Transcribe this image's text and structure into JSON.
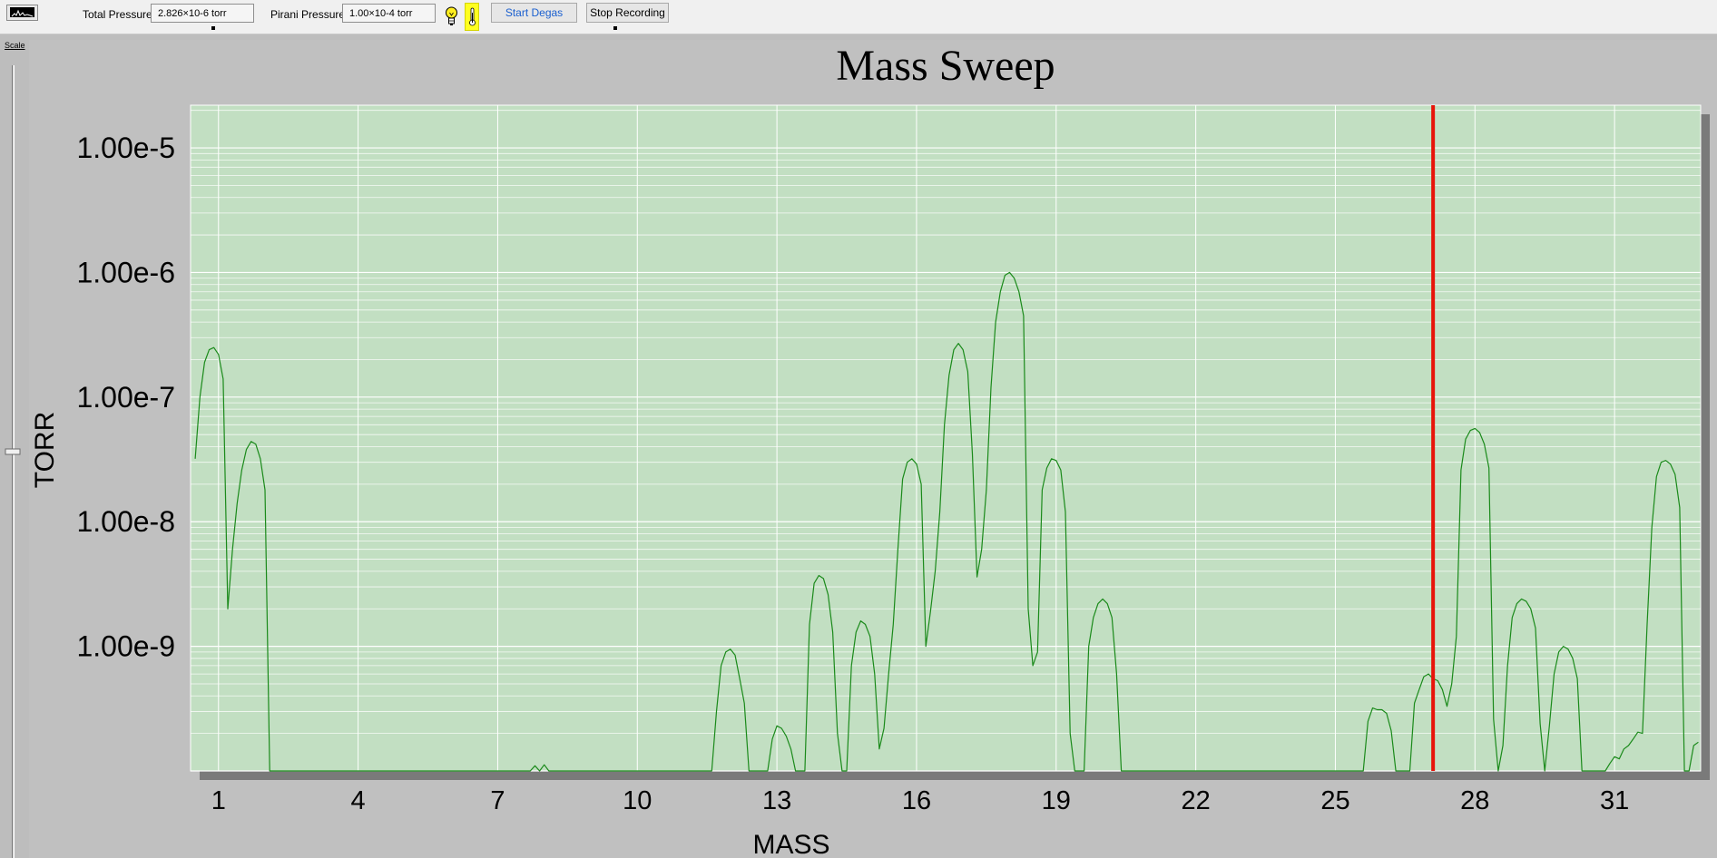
{
  "toolbar": {
    "total_pressure_label": "Total Pressure",
    "total_pressure_value": "2.826×10-6 torr",
    "pirani_pressure_label": "Pirani Pressure",
    "pirani_pressure_value": "1.00×10-4 torr",
    "start_degas_label": "Start Degas",
    "stop_recording_label": "Stop Recording",
    "scale_label": "Scale",
    "icons": [
      "spectrum-thumbnail-icon",
      "filament-bulb-icon",
      "thermometer-icon"
    ]
  },
  "colors": {
    "plot_background": "#c2dfc2",
    "trace": "#1a8a1a",
    "cursor": "#e8140a",
    "link_text": "#1a5fcf",
    "highlight": "#ffff20"
  },
  "chart_data": {
    "type": "line",
    "title": "Mass Sweep",
    "xlabel": "MASS",
    "ylabel": "TORR",
    "xlim": [
      0.4,
      32.85
    ],
    "ylim": [
      1e-10,
      2.2e-05
    ],
    "yscale": "log",
    "grid": true,
    "legend": "none",
    "x_ticks": [
      1,
      4,
      7,
      10,
      13,
      16,
      19,
      22,
      25,
      28,
      31
    ],
    "y_tick_labels": [
      "1.00e-5",
      "1.00e-6",
      "1.00e-7",
      "1.00e-8",
      "1.00e-9"
    ],
    "cursor_x": 27.1,
    "series": [
      {
        "x": [
          0.5,
          0.6,
          0.7,
          0.8,
          0.9,
          1.0,
          1.1,
          1.2,
          1.3,
          1.4,
          1.5,
          1.6,
          1.7,
          1.8,
          1.9,
          2.0,
          2.1,
          2.2,
          2.3,
          2.35,
          2.4,
          7.7,
          7.8,
          7.9,
          8.0,
          8.1,
          11.6,
          11.7,
          11.8,
          11.9,
          12.0,
          12.1,
          12.2,
          12.3,
          12.4,
          12.8,
          12.9,
          13.0,
          13.1,
          13.2,
          13.3,
          13.4,
          13.6,
          13.7,
          13.8,
          13.9,
          14.0,
          14.1,
          14.2,
          14.3,
          14.4,
          14.5,
          14.6,
          14.7,
          14.8,
          14.9,
          15.0,
          15.1,
          15.2,
          15.3,
          15.4,
          15.5,
          15.6,
          15.7,
          15.8,
          15.9,
          16.0,
          16.1,
          16.2,
          16.3,
          16.4,
          16.5,
          16.6,
          16.7,
          16.8,
          16.9,
          17.0,
          17.1,
          17.2,
          17.3,
          17.4,
          17.5,
          17.6,
          17.7,
          17.8,
          17.9,
          18.0,
          18.1,
          18.2,
          18.3,
          18.4,
          18.5,
          18.6,
          18.7,
          18.8,
          18.9,
          19.0,
          19.1,
          19.2,
          19.3,
          19.4,
          19.5,
          19.6,
          19.6,
          19.7,
          19.8,
          19.9,
          20.0,
          20.1,
          20.2,
          20.3,
          20.4,
          25.6,
          25.7,
          25.8,
          25.9,
          26.0,
          26.1,
          26.2,
          26.3,
          26.4,
          26.5,
          26.6,
          26.7,
          26.8,
          26.9,
          27.0,
          27.1,
          27.2,
          27.3,
          27.4,
          27.5,
          27.6,
          27.7,
          27.8,
          27.9,
          28.0,
          28.1,
          28.2,
          28.3,
          28.4,
          28.5,
          28.5,
          28.6,
          28.7,
          28.8,
          28.9,
          29.0,
          29.1,
          29.2,
          29.3,
          29.4,
          29.5,
          29.5,
          29.6,
          29.7,
          29.8,
          29.9,
          30.0,
          30.1,
          30.2,
          30.3,
          30.4,
          30.8,
          30.9,
          31.0,
          31.1,
          31.2,
          31.3,
          31.4,
          31.5,
          31.6,
          31.7,
          31.8,
          31.9,
          32.0,
          32.1,
          32.2,
          32.3,
          32.4,
          32.5,
          32.6,
          32.7,
          32.8
        ],
        "y": [
          3.2e-08,
          1e-07,
          1.9e-07,
          2.4e-07,
          2.5e-07,
          2.2e-07,
          1.4e-07,
          2e-09,
          6e-09,
          1.4e-08,
          2.6e-08,
          3.8e-08,
          4.4e-08,
          4.2e-08,
          3.2e-08,
          1.8e-08,
          1e-10,
          1e-10,
          1e-10,
          1e-10,
          1e-10,
          1e-10,
          1.1e-10,
          1e-10,
          1.12e-10,
          1e-10,
          1e-10,
          3e-10,
          7e-10,
          9e-10,
          9.5e-10,
          8.5e-10,
          5.5e-10,
          3.5e-10,
          1e-10,
          1e-10,
          1.8e-10,
          2.3e-10,
          2.2e-10,
          1.9e-10,
          1.5e-10,
          1e-10,
          1e-10,
          1.5e-09,
          3.2e-09,
          3.7e-09,
          3.5e-09,
          2.6e-09,
          1.3e-09,
          2e-10,
          1e-10,
          1e-10,
          7e-10,
          1.3e-09,
          1.6e-09,
          1.5e-09,
          1.2e-09,
          6e-10,
          1.5e-10,
          2.2e-10,
          6e-10,
          1.5e-09,
          6e-09,
          2.2e-08,
          3e-08,
          3.2e-08,
          2.9e-08,
          2e-08,
          1e-09,
          1.9e-09,
          4e-09,
          1.2e-08,
          6e-08,
          1.5e-07,
          2.4e-07,
          2.7e-07,
          2.4e-07,
          1.6e-07,
          3.5e-08,
          3.6e-09,
          6e-09,
          1.8e-08,
          1.2e-07,
          4e-07,
          7e-07,
          9.5e-07,
          1e-06,
          9e-07,
          7e-07,
          4.5e-07,
          2e-09,
          7e-10,
          9e-10,
          1.8e-08,
          2.7e-08,
          3.2e-08,
          3.1e-08,
          2.6e-08,
          1.2e-08,
          2e-10,
          1e-10,
          1e-10,
          1e-10,
          1e-10,
          1e-09,
          1.7e-09,
          2.2e-09,
          2.4e-09,
          2.2e-09,
          1.7e-09,
          6e-10,
          1e-10,
          1e-10,
          2.5e-10,
          3.2e-10,
          3.1e-10,
          3.1e-10,
          2.9e-10,
          2.1e-10,
          1e-10,
          1e-10,
          1e-10,
          1e-10,
          3.5e-10,
          4.5e-10,
          5.7e-10,
          6e-10,
          5.5e-10,
          5.3e-10,
          4.5e-10,
          3.3e-10,
          5e-10,
          1.2e-09,
          2.6e-08,
          4.6e-08,
          5.4e-08,
          5.6e-08,
          5.2e-08,
          4.2e-08,
          2.7e-08,
          2.6e-10,
          1e-10,
          1e-10,
          1.6e-10,
          7e-10,
          1.7e-09,
          2.2e-09,
          2.4e-09,
          2.3e-09,
          2e-09,
          1.4e-09,
          2.4e-10,
          1e-10,
          1e-10,
          2.3e-10,
          6e-10,
          9e-10,
          1e-09,
          9.5e-10,
          8e-10,
          5.5e-10,
          1e-10,
          1e-10,
          1e-10,
          1.15e-10,
          1.3e-10,
          1.25e-10,
          1.5e-10,
          1.6e-10,
          1.8e-10,
          2.05e-10,
          2e-10,
          1.5e-09,
          9e-09,
          2.3e-08,
          3e-08,
          3.1e-08,
          2.9e-08,
          2.4e-08,
          1.3e-08,
          1e-10,
          1e-10,
          1.6e-10,
          1.7e-10
        ]
      }
    ]
  }
}
